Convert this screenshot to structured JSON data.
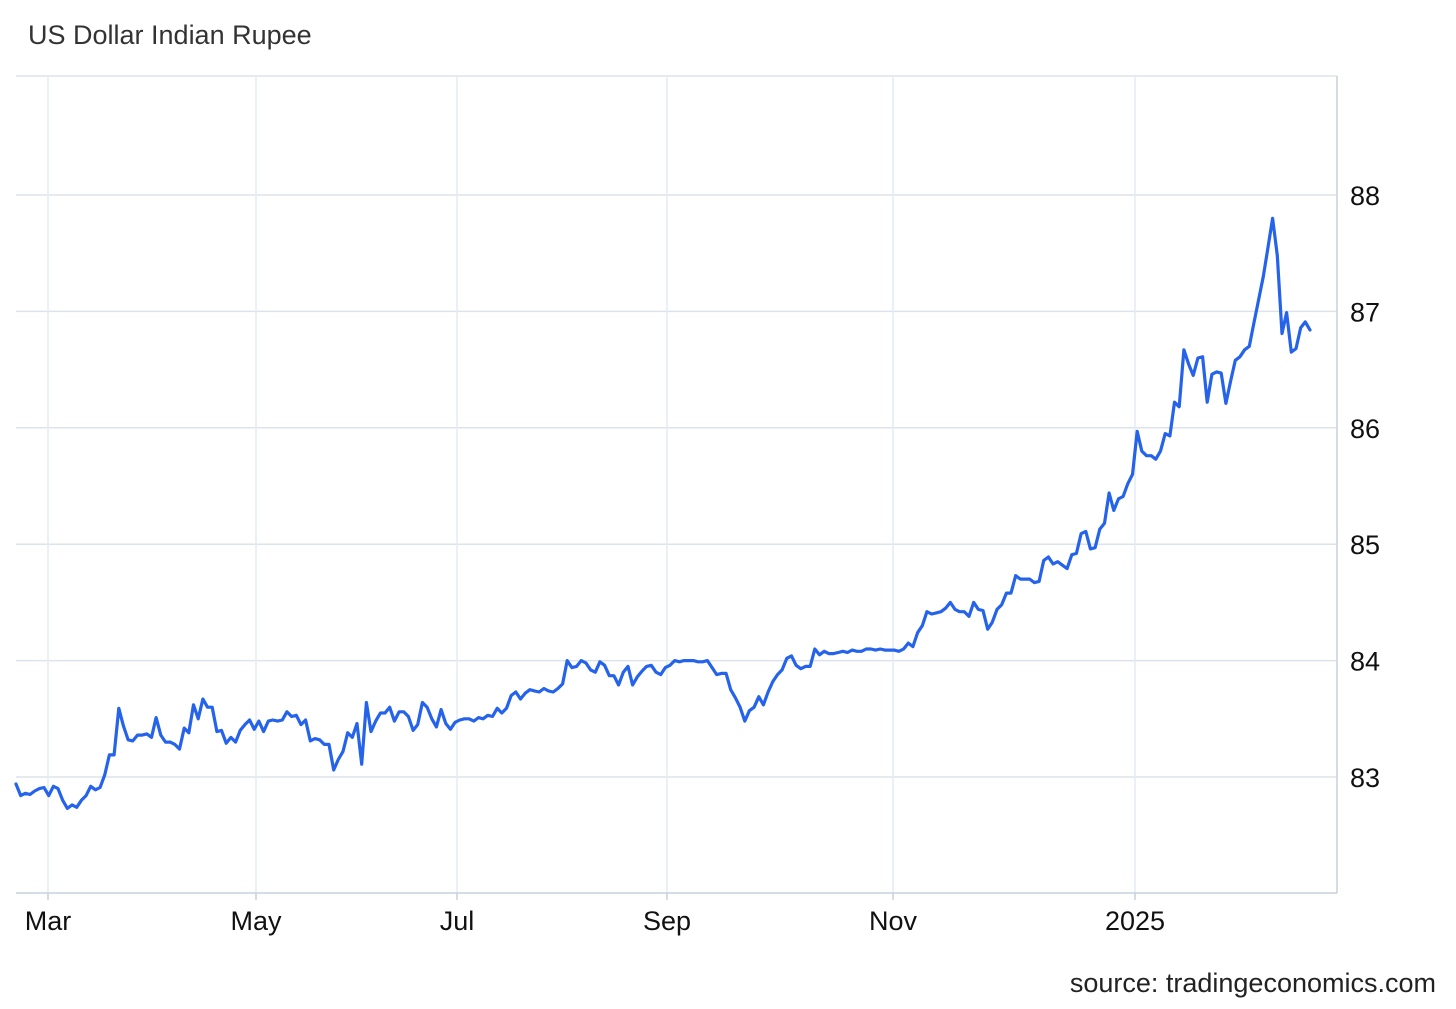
{
  "title": "US Dollar Indian Rupee",
  "source": "source: tradingeconomics.com",
  "chart_data": {
    "type": "line",
    "title": "US Dollar Indian Rupee",
    "xlabel": "",
    "ylabel": "",
    "ylim": [
      82.0,
      89.0
    ],
    "y_ticks": [
      83,
      84,
      85,
      86,
      87,
      88
    ],
    "x_ticks": [
      "Mar",
      "May",
      "Jul",
      "Sep",
      "Nov",
      "2025"
    ],
    "grid": true,
    "legend": "none",
    "series": [
      {
        "color": "#2563eb",
        "points": [
          [
            0,
            82.94
          ],
          [
            1,
            82.84
          ],
          [
            2,
            82.86
          ],
          [
            3,
            82.85
          ],
          [
            4,
            82.88
          ],
          [
            5,
            82.9
          ],
          [
            6,
            82.91
          ],
          [
            7,
            82.84
          ],
          [
            8,
            82.92
          ],
          [
            9,
            82.9
          ],
          [
            10,
            82.8
          ],
          [
            11,
            82.73
          ],
          [
            12,
            82.76
          ],
          [
            13,
            82.74
          ],
          [
            14,
            82.8
          ],
          [
            15,
            82.84
          ],
          [
            16,
            82.92
          ],
          [
            17,
            82.89
          ],
          [
            18,
            82.91
          ],
          [
            19,
            83.02
          ],
          [
            20,
            83.19
          ],
          [
            21,
            83.19
          ],
          [
            22,
            83.59
          ],
          [
            23,
            83.44
          ],
          [
            24,
            83.32
          ],
          [
            25,
            83.31
          ],
          [
            26,
            83.36
          ],
          [
            27,
            83.36
          ],
          [
            28,
            83.37
          ],
          [
            29,
            83.34
          ],
          [
            30,
            83.51
          ],
          [
            31,
            83.36
          ],
          [
            32,
            83.3
          ],
          [
            33,
            83.3
          ],
          [
            34,
            83.28
          ],
          [
            35,
            83.24
          ],
          [
            36,
            83.42
          ],
          [
            37,
            83.38
          ],
          [
            38,
            83.62
          ],
          [
            39,
            83.5
          ],
          [
            40,
            83.67
          ],
          [
            41,
            83.6
          ],
          [
            42,
            83.6
          ],
          [
            43,
            83.39
          ],
          [
            44,
            83.4
          ],
          [
            45,
            83.29
          ],
          [
            46,
            83.34
          ],
          [
            47,
            83.3
          ],
          [
            48,
            83.4
          ],
          [
            49,
            83.45
          ],
          [
            50,
            83.49
          ],
          [
            51,
            83.41
          ],
          [
            52,
            83.48
          ],
          [
            53,
            83.39
          ],
          [
            54,
            83.48
          ],
          [
            55,
            83.49
          ],
          [
            56,
            83.48
          ],
          [
            57,
            83.49
          ],
          [
            58,
            83.56
          ],
          [
            59,
            83.52
          ],
          [
            60,
            83.53
          ],
          [
            61,
            83.45
          ],
          [
            62,
            83.49
          ],
          [
            63,
            83.31
          ],
          [
            64,
            83.33
          ],
          [
            65,
            83.32
          ],
          [
            66,
            83.28
          ],
          [
            67,
            83.28
          ],
          [
            68,
            83.06
          ],
          [
            69,
            83.15
          ],
          [
            70,
            83.22
          ],
          [
            71,
            83.38
          ],
          [
            72,
            83.34
          ],
          [
            73,
            83.46
          ],
          [
            74,
            83.11
          ],
          [
            75,
            83.64
          ],
          [
            76,
            83.39
          ],
          [
            77,
            83.48
          ],
          [
            78,
            83.55
          ],
          [
            79,
            83.55
          ],
          [
            80,
            83.6
          ],
          [
            81,
            83.48
          ],
          [
            82,
            83.56
          ],
          [
            83,
            83.56
          ],
          [
            84,
            83.52
          ],
          [
            85,
            83.4
          ],
          [
            86,
            83.45
          ],
          [
            87,
            83.64
          ],
          [
            88,
            83.6
          ],
          [
            89,
            83.5
          ],
          [
            90,
            83.43
          ],
          [
            91,
            83.58
          ],
          [
            92,
            83.46
          ],
          [
            93,
            83.41
          ],
          [
            94,
            83.47
          ],
          [
            95,
            83.49
          ],
          [
            96,
            83.5
          ],
          [
            97,
            83.5
          ],
          [
            98,
            83.48
          ],
          [
            99,
            83.51
          ],
          [
            100,
            83.5
          ],
          [
            101,
            83.53
          ],
          [
            102,
            83.52
          ],
          [
            103,
            83.59
          ],
          [
            104,
            83.55
          ],
          [
            105,
            83.59
          ],
          [
            106,
            83.7
          ],
          [
            107,
            83.73
          ],
          [
            108,
            83.67
          ],
          [
            109,
            83.72
          ],
          [
            110,
            83.75
          ],
          [
            111,
            83.74
          ],
          [
            112,
            83.73
          ],
          [
            113,
            83.76
          ],
          [
            114,
            83.74
          ],
          [
            115,
            83.73
          ],
          [
            116,
            83.76
          ],
          [
            117,
            83.8
          ],
          [
            118,
            84.0
          ],
          [
            119,
            83.94
          ],
          [
            120,
            83.95
          ],
          [
            121,
            84.0
          ],
          [
            122,
            83.98
          ],
          [
            123,
            83.92
          ],
          [
            124,
            83.9
          ],
          [
            125,
            83.99
          ],
          [
            126,
            83.96
          ],
          [
            127,
            83.87
          ],
          [
            128,
            83.87
          ],
          [
            129,
            83.79
          ],
          [
            130,
            83.9
          ],
          [
            131,
            83.95
          ],
          [
            132,
            83.79
          ],
          [
            133,
            83.86
          ],
          [
            134,
            83.91
          ],
          [
            135,
            83.95
          ],
          [
            136,
            83.96
          ],
          [
            137,
            83.9
          ],
          [
            138,
            83.88
          ],
          [
            139,
            83.94
          ],
          [
            140,
            83.96
          ],
          [
            141,
            84.0
          ],
          [
            142,
            83.99
          ],
          [
            143,
            84.0
          ],
          [
            144,
            84.0
          ],
          [
            145,
            84.0
          ],
          [
            146,
            83.99
          ],
          [
            147,
            83.99
          ],
          [
            148,
            84.0
          ],
          [
            149,
            83.94
          ],
          [
            150,
            83.88
          ],
          [
            151,
            83.89
          ],
          [
            152,
            83.89
          ],
          [
            153,
            83.75
          ],
          [
            154,
            83.68
          ],
          [
            155,
            83.6
          ],
          [
            156,
            83.48
          ],
          [
            157,
            83.57
          ],
          [
            158,
            83.6
          ],
          [
            159,
            83.69
          ],
          [
            160,
            83.62
          ],
          [
            161,
            83.73
          ],
          [
            162,
            83.82
          ],
          [
            163,
            83.88
          ],
          [
            164,
            83.92
          ],
          [
            165,
            84.02
          ],
          [
            166,
            84.04
          ],
          [
            167,
            83.96
          ],
          [
            168,
            83.93
          ],
          [
            169,
            83.95
          ],
          [
            170,
            83.95
          ],
          [
            171,
            84.1
          ],
          [
            172,
            84.05
          ],
          [
            173,
            84.08
          ],
          [
            174,
            84.06
          ],
          [
            175,
            84.06
          ],
          [
            176,
            84.07
          ],
          [
            177,
            84.08
          ],
          [
            178,
            84.07
          ],
          [
            179,
            84.09
          ],
          [
            180,
            84.08
          ],
          [
            181,
            84.08
          ],
          [
            182,
            84.1
          ],
          [
            183,
            84.1
          ],
          [
            184,
            84.09
          ],
          [
            185,
            84.1
          ],
          [
            186,
            84.09
          ],
          [
            187,
            84.09
          ],
          [
            188,
            84.09
          ],
          [
            189,
            84.08
          ],
          [
            190,
            84.1
          ],
          [
            191,
            84.15
          ],
          [
            192,
            84.12
          ],
          [
            193,
            84.24
          ],
          [
            194,
            84.3
          ],
          [
            195,
            84.42
          ],
          [
            196,
            84.4
          ],
          [
            197,
            84.41
          ],
          [
            198,
            84.42
          ],
          [
            199,
            84.45
          ],
          [
            200,
            84.5
          ],
          [
            201,
            84.44
          ],
          [
            202,
            84.42
          ],
          [
            203,
            84.42
          ],
          [
            204,
            84.38
          ],
          [
            205,
            84.5
          ],
          [
            206,
            84.44
          ],
          [
            207,
            84.43
          ],
          [
            208,
            84.27
          ],
          [
            209,
            84.33
          ],
          [
            210,
            84.44
          ],
          [
            211,
            84.48
          ],
          [
            212,
            84.58
          ],
          [
            213,
            84.58
          ],
          [
            214,
            84.73
          ],
          [
            215,
            84.7
          ],
          [
            216,
            84.7
          ],
          [
            217,
            84.7
          ],
          [
            218,
            84.67
          ],
          [
            219,
            84.68
          ],
          [
            220,
            84.86
          ],
          [
            221,
            84.89
          ],
          [
            222,
            84.83
          ],
          [
            223,
            84.85
          ],
          [
            224,
            84.82
          ],
          [
            225,
            84.79
          ],
          [
            226,
            84.91
          ],
          [
            227,
            84.92
          ],
          [
            228,
            85.09
          ],
          [
            229,
            85.11
          ],
          [
            230,
            84.96
          ],
          [
            231,
            84.97
          ],
          [
            232,
            85.13
          ],
          [
            233,
            85.18
          ],
          [
            234,
            85.44
          ],
          [
            235,
            85.29
          ],
          [
            236,
            85.39
          ],
          [
            237,
            85.41
          ],
          [
            238,
            85.52
          ],
          [
            239,
            85.6
          ],
          [
            240,
            85.97
          ],
          [
            241,
            85.8
          ],
          [
            242,
            85.76
          ],
          [
            243,
            85.76
          ],
          [
            244,
            85.73
          ],
          [
            245,
            85.8
          ],
          [
            246,
            85.95
          ],
          [
            247,
            85.93
          ],
          [
            248,
            86.22
          ],
          [
            249,
            86.18
          ],
          [
            250,
            86.67
          ],
          [
            251,
            86.55
          ],
          [
            252,
            86.45
          ],
          [
            253,
            86.6
          ],
          [
            254,
            86.61
          ],
          [
            255,
            86.22
          ],
          [
            256,
            86.46
          ],
          [
            257,
            86.48
          ],
          [
            258,
            86.47
          ],
          [
            259,
            86.21
          ],
          [
            260,
            86.4
          ],
          [
            261,
            86.58
          ],
          [
            262,
            86.61
          ],
          [
            263,
            86.67
          ],
          [
            264,
            86.7
          ],
          [
            265,
            86.9
          ],
          [
            266,
            87.1
          ],
          [
            267,
            87.3
          ],
          [
            268,
            87.55
          ],
          [
            269,
            87.8
          ],
          [
            270,
            87.48
          ],
          [
            271,
            86.81
          ],
          [
            272,
            86.99
          ],
          [
            273,
            86.65
          ],
          [
            274,
            86.68
          ],
          [
            275,
            86.86
          ],
          [
            276,
            86.91
          ],
          [
            277,
            86.84
          ]
        ]
      }
    ]
  }
}
